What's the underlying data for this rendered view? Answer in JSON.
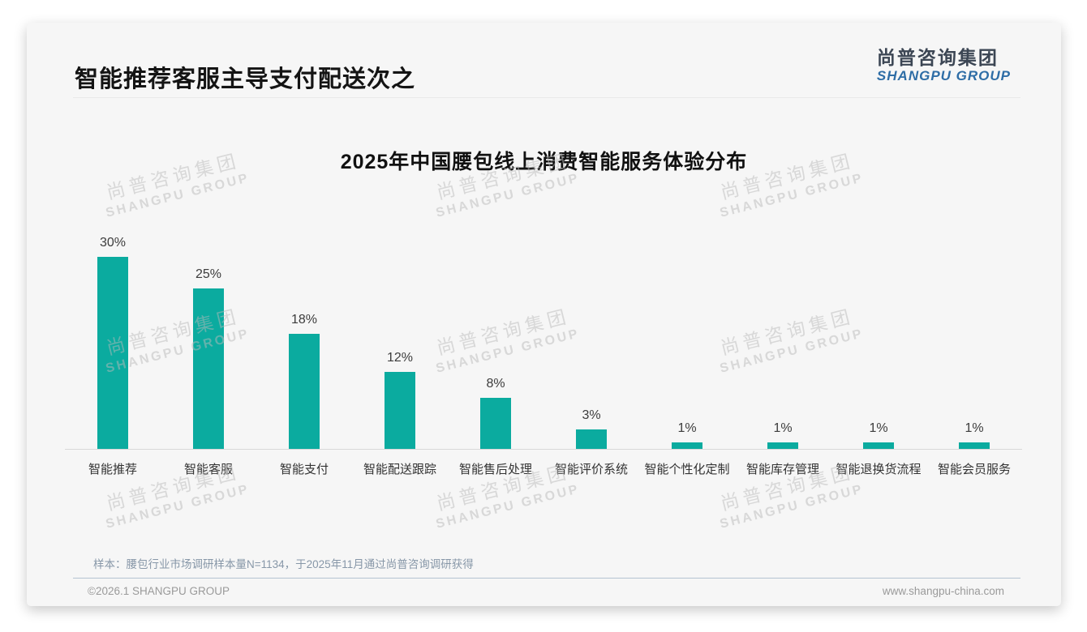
{
  "header": {
    "title": "智能推荐客服主导支付配送次之",
    "logo_cn": "尚普咨询集团",
    "logo_en": "SHANGPU GROUP"
  },
  "watermark": {
    "line1": "尚普咨询集团",
    "line2": "SHANGPU GROUP"
  },
  "chart_data": {
    "type": "bar",
    "title": "2025年中国腰包线上消费智能服务体验分布",
    "categories": [
      "智能推荐",
      "智能客服",
      "智能支付",
      "智能配送跟踪",
      "智能售后处理",
      "智能评价系统",
      "智能个性化定制",
      "智能库存管理",
      "智能退换货流程",
      "智能会员服务"
    ],
    "values": [
      30,
      25,
      18,
      12,
      8,
      3,
      1,
      1,
      1,
      1
    ],
    "value_labels": [
      "30%",
      "25%",
      "18%",
      "12%",
      "8%",
      "3%",
      "1%",
      "1%",
      "1%",
      "1%"
    ],
    "unit": "%",
    "bar_color": "#0bab9f",
    "value_label_color": "#3c3c3c",
    "xlabel": "",
    "ylabel": "",
    "ylim": [
      0,
      30
    ],
    "grid": false,
    "legend": false
  },
  "footnote": "样本：腰包行业市场调研样本量N=1134，于2025年11月通过尚普咨询调研获得",
  "footer": {
    "left": "©2026.1 SHANGPU GROUP",
    "right": "www.shangpu-china.com"
  }
}
